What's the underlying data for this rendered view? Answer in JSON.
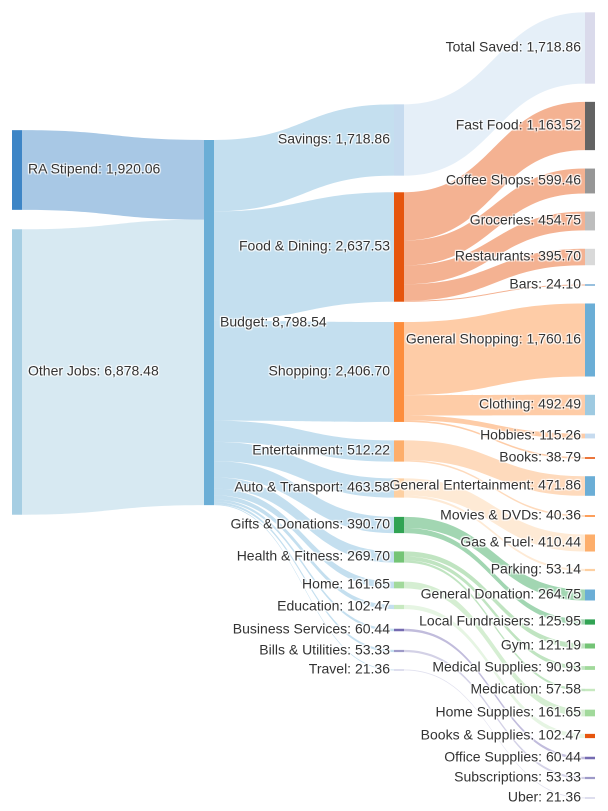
{
  "chart_data": {
    "type": "sankey",
    "title": "",
    "nodes": [
      {
        "id": "ra",
        "label": "RA Stipend",
        "value": 1920.06,
        "color": "#3d85c6",
        "column": 0
      },
      {
        "id": "other",
        "label": "Other Jobs",
        "value": 6878.48,
        "color": "#a6cee3",
        "column": 0
      },
      {
        "id": "budget",
        "label": "Budget",
        "value": 8798.54,
        "color": "#6baed6",
        "column": 1
      },
      {
        "id": "savings",
        "label": "Savings",
        "value": 1718.86,
        "color": "#c6dbef",
        "column": 2
      },
      {
        "id": "food",
        "label": "Food & Dining",
        "value": 2637.53,
        "color": "#e6550d",
        "column": 2
      },
      {
        "id": "shopping",
        "label": "Shopping",
        "value": 2406.7,
        "color": "#fd8d3c",
        "column": 2
      },
      {
        "id": "ent",
        "label": "Entertainment",
        "value": 512.22,
        "color": "#fdae6b",
        "column": 2
      },
      {
        "id": "auto",
        "label": "Auto & Transport",
        "value": 463.58,
        "color": "#fdd0a2",
        "column": 2
      },
      {
        "id": "gifts",
        "label": "Gifts & Donations",
        "value": 390.7,
        "color": "#31a354",
        "column": 2
      },
      {
        "id": "health",
        "label": "Health & Fitness",
        "value": 269.7,
        "color": "#74c476",
        "column": 2
      },
      {
        "id": "home",
        "label": "Home",
        "value": 161.65,
        "color": "#a1d99b",
        "column": 2
      },
      {
        "id": "edu",
        "label": "Education",
        "value": 102.47,
        "color": "#c7e9c0",
        "column": 2
      },
      {
        "id": "biz",
        "label": "Business Services",
        "value": 60.44,
        "color": "#756bb1",
        "column": 2
      },
      {
        "id": "bills",
        "label": "Bills & Utilities",
        "value": 53.33,
        "color": "#9e9ac8",
        "column": 2
      },
      {
        "id": "travel",
        "label": "Travel",
        "value": 21.36,
        "color": "#bcbddc",
        "column": 2
      },
      {
        "id": "saved",
        "label": "Total Saved",
        "value": 1718.86,
        "color": "#dadaeb",
        "column": 3
      },
      {
        "id": "fastfood",
        "label": "Fast Food",
        "value": 1163.52,
        "color": "#636363",
        "column": 3
      },
      {
        "id": "coffee",
        "label": "Coffee Shops",
        "value": 599.46,
        "color": "#969696",
        "column": 3
      },
      {
        "id": "groceries",
        "label": "Groceries",
        "value": 454.75,
        "color": "#bdbdbd",
        "column": 3
      },
      {
        "id": "restaurants",
        "label": "Restaurants",
        "value": 395.7,
        "color": "#d9d9d9",
        "column": 3
      },
      {
        "id": "bars",
        "label": "Bars",
        "value": 24.1,
        "color": "#3182bd",
        "column": 3
      },
      {
        "id": "genshop",
        "label": "General Shopping",
        "value": 1760.16,
        "color": "#6baed6",
        "column": 3
      },
      {
        "id": "clothing",
        "label": "Clothing",
        "value": 492.49,
        "color": "#9ecae1",
        "column": 3
      },
      {
        "id": "hobbies",
        "label": "Hobbies",
        "value": 115.26,
        "color": "#c6dbef",
        "column": 3
      },
      {
        "id": "books",
        "label": "Books",
        "value": 38.79,
        "color": "#e6550d",
        "column": 3
      },
      {
        "id": "genent",
        "label": "General Entertainment",
        "value": 471.86,
        "color": "#6baed6",
        "column": 3
      },
      {
        "id": "movies",
        "label": "Movies & DVDs",
        "value": 40.36,
        "color": "#fd8d3c",
        "column": 3
      },
      {
        "id": "gas",
        "label": "Gas & Fuel",
        "value": 410.44,
        "color": "#fdae6b",
        "column": 3
      },
      {
        "id": "parking",
        "label": "Parking",
        "value": 53.14,
        "color": "#fdd0a2",
        "column": 3
      },
      {
        "id": "gendon",
        "label": "General Donation",
        "value": 264.75,
        "color": "#6baed6",
        "column": 3
      },
      {
        "id": "local",
        "label": "Local Fundraisers",
        "value": 125.95,
        "color": "#31a354",
        "column": 3
      },
      {
        "id": "gym",
        "label": "Gym",
        "value": 121.19,
        "color": "#74c476",
        "column": 3
      },
      {
        "id": "medsup",
        "label": "Medical Supplies",
        "value": 90.93,
        "color": "#a1d99b",
        "column": 3
      },
      {
        "id": "medication",
        "label": "Medication",
        "value": 57.58,
        "color": "#c7e9c0",
        "column": 3
      },
      {
        "id": "homesup",
        "label": "Home Supplies",
        "value": 161.65,
        "color": "#a1d99b",
        "column": 3
      },
      {
        "id": "booksup",
        "label": "Books & Supplies",
        "value": 102.47,
        "color": "#e6550d",
        "column": 3
      },
      {
        "id": "office",
        "label": "Office Supplies",
        "value": 60.44,
        "color": "#756bb1",
        "column": 3
      },
      {
        "id": "subs",
        "label": "Subscriptions",
        "value": 53.33,
        "color": "#9e9ac8",
        "column": 3
      },
      {
        "id": "uber",
        "label": "Uber",
        "value": 21.36,
        "color": "#bcbddc",
        "column": 3
      }
    ],
    "links": [
      [
        "ra",
        "budget",
        1920.06
      ],
      [
        "other",
        "budget",
        6878.48
      ],
      [
        "budget",
        "savings",
        1718.86
      ],
      [
        "budget",
        "food",
        2637.53
      ],
      [
        "budget",
        "shopping",
        2406.7
      ],
      [
        "budget",
        "ent",
        512.22
      ],
      [
        "budget",
        "auto",
        463.58
      ],
      [
        "budget",
        "gifts",
        390.7
      ],
      [
        "budget",
        "health",
        269.7
      ],
      [
        "budget",
        "home",
        161.65
      ],
      [
        "budget",
        "edu",
        102.47
      ],
      [
        "budget",
        "biz",
        60.44
      ],
      [
        "budget",
        "bills",
        53.33
      ],
      [
        "budget",
        "travel",
        21.36
      ],
      [
        "savings",
        "saved",
        1718.86
      ],
      [
        "food",
        "fastfood",
        1163.52
      ],
      [
        "food",
        "coffee",
        599.46
      ],
      [
        "food",
        "groceries",
        454.75
      ],
      [
        "food",
        "restaurants",
        395.7
      ],
      [
        "food",
        "bars",
        24.1
      ],
      [
        "shopping",
        "genshop",
        1760.16
      ],
      [
        "shopping",
        "clothing",
        492.49
      ],
      [
        "shopping",
        "hobbies",
        115.26
      ],
      [
        "shopping",
        "books",
        38.79
      ],
      [
        "ent",
        "genent",
        471.86
      ],
      [
        "ent",
        "movies",
        40.36
      ],
      [
        "auto",
        "gas",
        410.44
      ],
      [
        "auto",
        "parking",
        53.14
      ],
      [
        "gifts",
        "gendon",
        264.75
      ],
      [
        "gifts",
        "local",
        125.95
      ],
      [
        "health",
        "gym",
        121.19
      ],
      [
        "health",
        "medsup",
        90.93
      ],
      [
        "health",
        "medication",
        57.58
      ],
      [
        "home",
        "homesup",
        161.65
      ],
      [
        "edu",
        "booksup",
        102.47
      ],
      [
        "biz",
        "office",
        60.44
      ],
      [
        "bills",
        "subs",
        53.33
      ],
      [
        "travel",
        "uber",
        21.36
      ]
    ]
  }
}
